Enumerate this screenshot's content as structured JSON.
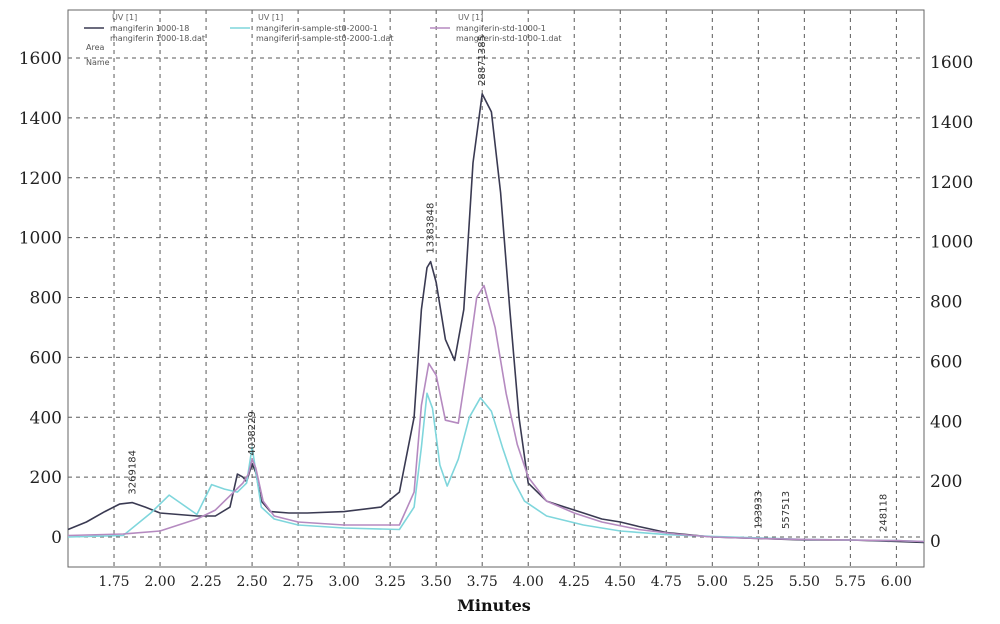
{
  "chart_data": {
    "type": "line",
    "xlabel": "Minutes",
    "xlim": [
      1.5,
      6.15
    ],
    "ylim": [
      -20,
      1700
    ],
    "x_ticks": [
      "1.75",
      "2.00",
      "2.25",
      "2.50",
      "2.75",
      "3.00",
      "3.25",
      "3.50",
      "3.75",
      "4.00",
      "4.25",
      "4.50",
      "4.75",
      "5.00",
      "5.25",
      "5.50",
      "5.75",
      "6.00"
    ],
    "x_tick_values": [
      1.75,
      2.0,
      2.25,
      2.5,
      2.75,
      3.0,
      3.25,
      3.5,
      3.75,
      4.0,
      4.25,
      4.5,
      4.75,
      5.0,
      5.25,
      5.5,
      5.75,
      6.0
    ],
    "y_ticks_left": [
      "0",
      "200",
      "400",
      "600",
      "800",
      "1000",
      "1200",
      "1400",
      "1600"
    ],
    "y_ticks_right": [
      "0",
      "200",
      "400",
      "600",
      "800",
      "1000",
      "1200",
      "1400",
      "1600"
    ],
    "y_tick_values": [
      0,
      200,
      400,
      600,
      800,
      1000,
      1200,
      1400,
      1600
    ],
    "grid": true,
    "legend": [
      {
        "header": "UV [1]",
        "line1": "mangiferin 1000-18",
        "line2": "mangiferin 1000-18.dat",
        "color": "#3a3a52"
      },
      {
        "header": "UV [1]",
        "line1": "mangiferin-sample-st0-2000-1",
        "line2": "mangiferin-sample-st0-2000-1.dat",
        "color": "#7fd6dc"
      },
      {
        "header": "UV [1]",
        "line1": "mangiferin-std-1000-1",
        "line2": "mangiferin-std-1000-1.dat",
        "color": "#b58ac0"
      }
    ],
    "legend_side_labels": [
      "Area",
      "Name"
    ],
    "series": [
      {
        "color": "#3a3a52",
        "x": [
          1.5,
          1.6,
          1.7,
          1.78,
          1.85,
          1.92,
          2.0,
          2.1,
          2.2,
          2.3,
          2.38,
          2.42,
          2.45,
          2.47,
          2.5,
          2.52,
          2.55,
          2.6,
          2.7,
          2.8,
          3.0,
          3.2,
          3.3,
          3.38,
          3.42,
          3.45,
          3.47,
          3.5,
          3.55,
          3.6,
          3.65,
          3.7,
          3.75,
          3.8,
          3.85,
          3.9,
          3.95,
          4.0,
          4.1,
          4.2,
          4.3,
          4.4,
          4.5,
          4.6,
          4.75,
          5.0,
          5.25,
          5.5,
          5.75,
          6.0,
          6.15
        ],
        "y": [
          25,
          50,
          85,
          110,
          115,
          100,
          80,
          75,
          70,
          70,
          100,
          210,
          200,
          185,
          245,
          215,
          120,
          85,
          80,
          80,
          85,
          100,
          150,
          400,
          760,
          900,
          920,
          850,
          660,
          590,
          760,
          1250,
          1480,
          1420,
          1150,
          760,
          400,
          180,
          120,
          100,
          80,
          60,
          50,
          35,
          15,
          0,
          -5,
          -10,
          -10,
          -15,
          -18
        ]
      },
      {
        "color": "#7fd6dc",
        "x": [
          1.5,
          1.8,
          1.95,
          2.05,
          2.12,
          2.2,
          2.28,
          2.35,
          2.42,
          2.47,
          2.5,
          2.55,
          2.62,
          2.75,
          3.0,
          3.3,
          3.38,
          3.42,
          3.45,
          3.48,
          3.52,
          3.56,
          3.62,
          3.68,
          3.74,
          3.8,
          3.86,
          3.92,
          3.98,
          4.1,
          4.3,
          4.5,
          4.75,
          5.0,
          5.25,
          5.5,
          5.75,
          6.0,
          6.15
        ],
        "y": [
          0,
          5,
          80,
          140,
          110,
          75,
          175,
          160,
          150,
          180,
          300,
          100,
          60,
          40,
          30,
          25,
          100,
          300,
          480,
          430,
          240,
          170,
          260,
          400,
          465,
          420,
          300,
          190,
          120,
          70,
          40,
          20,
          8,
          2,
          -3,
          -8,
          -10,
          -12,
          -15
        ]
      },
      {
        "color": "#b58ac0",
        "x": [
          1.5,
          1.8,
          2.0,
          2.2,
          2.3,
          2.4,
          2.45,
          2.48,
          2.5,
          2.52,
          2.56,
          2.62,
          2.75,
          3.0,
          3.3,
          3.38,
          3.42,
          3.46,
          3.5,
          3.55,
          3.62,
          3.68,
          3.72,
          3.76,
          3.82,
          3.88,
          3.94,
          4.0,
          4.1,
          4.25,
          4.4,
          4.6,
          4.8,
          5.0,
          5.25,
          5.5,
          5.75,
          6.0,
          6.15
        ],
        "y": [
          5,
          10,
          20,
          60,
          90,
          150,
          180,
          210,
          260,
          230,
          120,
          70,
          50,
          40,
          40,
          150,
          440,
          580,
          540,
          390,
          380,
          620,
          800,
          840,
          700,
          480,
          310,
          200,
          120,
          80,
          50,
          25,
          10,
          0,
          -5,
          -8,
          -10,
          -12,
          -15
        ]
      }
    ],
    "peak_labels": [
      {
        "text": "3269184",
        "x": 1.85,
        "y": 115,
        "anchor": "up"
      },
      {
        "text": "4038229",
        "x": 2.5,
        "y": 245,
        "anchor": "up"
      },
      {
        "text": "13383848",
        "x": 3.47,
        "y": 920,
        "anchor": "up"
      },
      {
        "text": "28871385",
        "x": 3.75,
        "y": 1480,
        "anchor": "up"
      },
      {
        "text": "193933",
        "x": 5.25,
        "y": 0,
        "anchor": "up"
      },
      {
        "text": "557513",
        "x": 5.4,
        "y": 0,
        "anchor": "up"
      },
      {
        "text": "248118",
        "x": 5.93,
        "y": -10,
        "anchor": "up"
      }
    ]
  }
}
